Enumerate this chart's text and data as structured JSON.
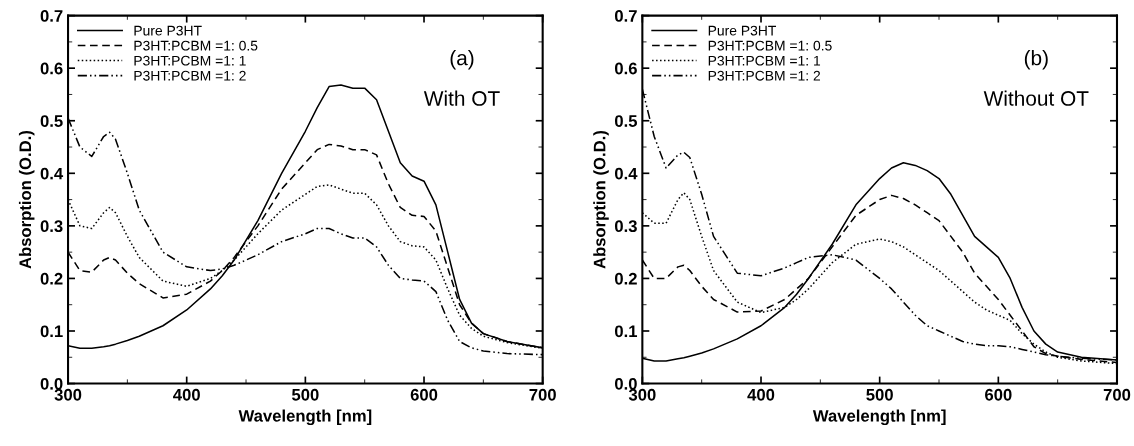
{
  "chart_data": [
    {
      "type": "line",
      "xlabel": "Wavelength [nm]",
      "ylabel": "Absorption (O.D.)",
      "annotations": [
        "(a)",
        "With OT"
      ],
      "legend": "top left",
      "grid": false,
      "marker": "none",
      "xlim": [
        300,
        700
      ],
      "xticks": [
        300,
        400,
        500,
        600,
        700
      ],
      "ylim": [
        0,
        0.7
      ],
      "yticks": [
        {
          "value": 0,
          "label": "0.0"
        },
        0.1,
        0.2,
        0.3,
        0.4,
        0.5,
        0.6,
        0.7
      ],
      "x": [
        300,
        310,
        320,
        330,
        335,
        340,
        350,
        360,
        380,
        400,
        420,
        430,
        440,
        460,
        480,
        500,
        510,
        520,
        530,
        540,
        550,
        560,
        570,
        580,
        590,
        600,
        610,
        620,
        630,
        640,
        650,
        670,
        700
      ],
      "series": [
        {
          "name": "Pure P3HT",
          "color": "#000000",
          "line_style": "solid",
          "values": [
            0.072,
            0.067,
            0.067,
            0.07,
            0.072,
            0.075,
            0.082,
            0.09,
            0.11,
            0.14,
            0.18,
            0.205,
            0.235,
            0.31,
            0.4,
            0.48,
            0.525,
            0.565,
            0.568,
            0.562,
            0.562,
            0.54,
            0.48,
            0.42,
            0.395,
            0.385,
            0.34,
            0.25,
            0.16,
            0.115,
            0.095,
            0.08,
            0.068
          ]
        },
        {
          "name": "P3HT:PCBM =1: 0.5",
          "color": "#000000",
          "line_style": "dashed",
          "values": [
            0.25,
            0.215,
            0.212,
            0.235,
            0.24,
            0.235,
            0.21,
            0.19,
            0.163,
            0.17,
            0.195,
            0.215,
            0.24,
            0.3,
            0.37,
            0.42,
            0.445,
            0.455,
            0.452,
            0.445,
            0.445,
            0.435,
            0.38,
            0.335,
            0.32,
            0.318,
            0.29,
            0.22,
            0.15,
            0.115,
            0.095,
            0.08,
            0.068
          ]
        },
        {
          "name": "P3HT:PCBM =1: 1",
          "color": "#000000",
          "line_style": "dotted",
          "values": [
            0.35,
            0.3,
            0.295,
            0.325,
            0.335,
            0.325,
            0.28,
            0.24,
            0.195,
            0.185,
            0.2,
            0.215,
            0.235,
            0.285,
            0.33,
            0.36,
            0.375,
            0.378,
            0.37,
            0.362,
            0.362,
            0.34,
            0.3,
            0.27,
            0.262,
            0.26,
            0.235,
            0.18,
            0.13,
            0.105,
            0.09,
            0.078,
            0.067
          ]
        },
        {
          "name": "P3HT:PCBM =1: 2",
          "color": "#000000",
          "line_style": "dashdot",
          "values": [
            0.505,
            0.45,
            0.432,
            0.47,
            0.478,
            0.465,
            0.4,
            0.33,
            0.25,
            0.222,
            0.215,
            0.218,
            0.225,
            0.245,
            0.27,
            0.285,
            0.295,
            0.295,
            0.285,
            0.277,
            0.277,
            0.26,
            0.225,
            0.2,
            0.197,
            0.195,
            0.175,
            0.12,
            0.08,
            0.068,
            0.062,
            0.057,
            0.055
          ]
        }
      ]
    },
    {
      "type": "line",
      "xlabel": "Wavelength [nm]",
      "ylabel": "Absorption (O.D.)",
      "annotations": [
        "(b)",
        "Without OT"
      ],
      "legend": "top left",
      "grid": false,
      "marker": "none",
      "xlim": [
        300,
        700
      ],
      "xticks": [
        300,
        400,
        500,
        600,
        700
      ],
      "ylim": [
        0,
        0.7
      ],
      "yticks": [
        {
          "value": 0,
          "label": "0.0"
        },
        0.1,
        0.2,
        0.3,
        0.4,
        0.5,
        0.6,
        0.7
      ],
      "x": [
        300,
        310,
        320,
        330,
        335,
        340,
        350,
        360,
        380,
        400,
        420,
        430,
        440,
        460,
        480,
        500,
        510,
        520,
        530,
        540,
        550,
        560,
        570,
        580,
        590,
        600,
        610,
        620,
        630,
        640,
        650,
        670,
        700
      ],
      "series": [
        {
          "name": "Pure P3HT",
          "color": "#000000",
          "line_style": "solid",
          "values": [
            0.048,
            0.043,
            0.043,
            0.047,
            0.049,
            0.052,
            0.058,
            0.066,
            0.085,
            0.11,
            0.145,
            0.17,
            0.2,
            0.265,
            0.34,
            0.39,
            0.41,
            0.42,
            0.415,
            0.405,
            0.39,
            0.36,
            0.32,
            0.28,
            0.26,
            0.24,
            0.2,
            0.145,
            0.1,
            0.075,
            0.06,
            0.05,
            0.045
          ]
        },
        {
          "name": "P3HT:PCBM =1: 0.5",
          "color": "#000000",
          "line_style": "dashed",
          "values": [
            0.235,
            0.2,
            0.2,
            0.222,
            0.225,
            0.215,
            0.185,
            0.16,
            0.136,
            0.138,
            0.16,
            0.18,
            0.2,
            0.26,
            0.32,
            0.35,
            0.358,
            0.352,
            0.34,
            0.325,
            0.31,
            0.28,
            0.25,
            0.21,
            0.185,
            0.16,
            0.13,
            0.1,
            0.07,
            0.057,
            0.052,
            0.046,
            0.04
          ]
        },
        {
          "name": "P3HT:PCBM =1: 1",
          "color": "#000000",
          "line_style": "dotted",
          "values": [
            0.325,
            0.305,
            0.305,
            0.35,
            0.363,
            0.35,
            0.28,
            0.215,
            0.155,
            0.135,
            0.145,
            0.16,
            0.18,
            0.23,
            0.265,
            0.275,
            0.27,
            0.26,
            0.245,
            0.23,
            0.215,
            0.195,
            0.175,
            0.155,
            0.14,
            0.13,
            0.12,
            0.095,
            0.075,
            0.06,
            0.05,
            0.043,
            0.038
          ]
        },
        {
          "name": "P3HT:PCBM =1: 2",
          "color": "#000000",
          "line_style": "dashdot",
          "values": [
            0.56,
            0.47,
            0.41,
            0.435,
            0.44,
            0.43,
            0.36,
            0.28,
            0.21,
            0.205,
            0.22,
            0.23,
            0.24,
            0.245,
            0.235,
            0.2,
            0.18,
            0.155,
            0.13,
            0.11,
            0.1,
            0.09,
            0.08,
            0.075,
            0.072,
            0.072,
            0.07,
            0.065,
            0.06,
            0.055,
            0.052,
            0.048,
            0.045
          ]
        }
      ]
    }
  ]
}
